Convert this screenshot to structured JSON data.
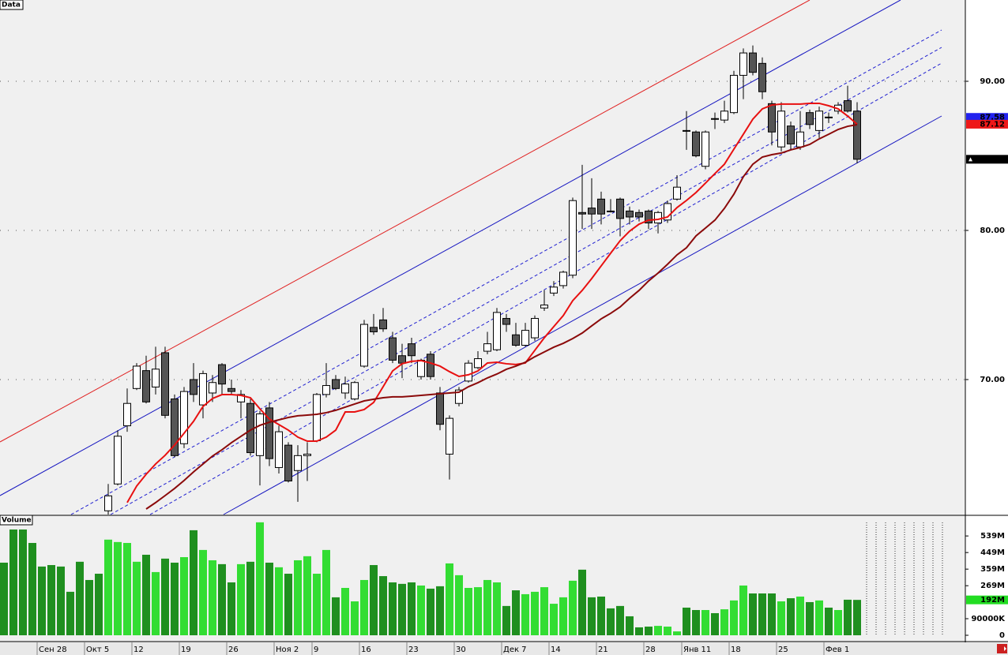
{
  "chart_data": {
    "type": "candlestick",
    "title": "Data",
    "categories": [
      null,
      null,
      null,
      null,
      "Сен 28",
      null,
      null,
      null,
      null,
      "Окт 5",
      null,
      null,
      null,
      null,
      "12",
      null,
      null,
      null,
      null,
      "19",
      null,
      null,
      null,
      null,
      "26",
      null,
      null,
      null,
      null,
      "Ноя 2",
      null,
      null,
      null,
      "9",
      null,
      null,
      null,
      null,
      "16",
      null,
      null,
      null,
      null,
      "23",
      null,
      null,
      null,
      null,
      "30",
      null,
      null,
      null,
      null,
      "Дек 7",
      null,
      null,
      null,
      null,
      "14",
      null,
      null,
      null,
      null,
      "21",
      null,
      null,
      null,
      null,
      "28",
      null,
      null,
      null,
      "Янв 11",
      null,
      null,
      null,
      null,
      "18",
      null,
      null,
      null,
      null,
      "25",
      null,
      null,
      null,
      null,
      "Фев 1",
      null,
      null,
      null
    ],
    "open": [
      null,
      null,
      null,
      null,
      null,
      null,
      null,
      null,
      null,
      null,
      null,
      61.2,
      63.0,
      66.9,
      69.4,
      70.6,
      69.5,
      71.8,
      68.7,
      65.7,
      70.0,
      68.3,
      69.1,
      71.0,
      69.4,
      68.5,
      68.4,
      64.9,
      68.1,
      64.1,
      65.6,
      63.9,
      64.9,
      65.9,
      69.0,
      70.0,
      69.1,
      68.7,
      70.9,
      73.5,
      74.0,
      72.8,
      71.6,
      72.4,
      70.2,
      71.7,
      69.1,
      65.0,
      68.4,
      69.9,
      70.8,
      71.9,
      72.0,
      74.1,
      73.0,
      72.3,
      72.8,
      74.8,
      75.8,
      76.3,
      77.0,
      81.2,
      81.5,
      82.1,
      81.3,
      82.1,
      81.3,
      81.2,
      81.3,
      80.5,
      80.7,
      82.1,
      86.7,
      86.6,
      84.3,
      87.5,
      87.4,
      87.9,
      90.4,
      91.9,
      91.2,
      88.5,
      85.6,
      87.0,
      85.6,
      87.9,
      86.7,
      87.6,
      88.0,
      88.7,
      88.0
    ],
    "high": [
      null,
      null,
      null,
      null,
      null,
      null,
      null,
      null,
      null,
      null,
      null,
      63.0,
      66.6,
      69.4,
      71.1,
      71.6,
      72.2,
      72.2,
      69.0,
      69.5,
      71.1,
      70.6,
      70.3,
      71.1,
      70.0,
      69.3,
      68.7,
      67.9,
      68.5,
      66.9,
      65.8,
      65.6,
      65.8,
      69.1,
      71.1,
      70.3,
      70.2,
      69.9,
      74.0,
      74.4,
      74.8,
      73.2,
      72.4,
      72.8,
      71.4,
      71.9,
      69.5,
      67.6,
      69.5,
      71.3,
      71.9,
      73.2,
      74.8,
      74.4,
      73.8,
      73.8,
      74.3,
      76.0,
      76.6,
      77.3,
      82.2,
      84.4,
      83.5,
      82.6,
      82.1,
      82.2,
      81.6,
      81.4,
      81.4,
      81.3,
      82.0,
      83.7,
      88.0,
      86.7,
      86.7,
      87.9,
      88.7,
      90.7,
      92.2,
      92.4,
      91.6,
      88.7,
      88.6,
      87.3,
      88.0,
      88.1,
      88.3,
      87.9,
      88.6,
      89.7,
      88.6
    ],
    "low": [
      null,
      null,
      null,
      null,
      null,
      null,
      null,
      null,
      null,
      null,
      null,
      60.9,
      62.9,
      66.5,
      69.3,
      68.4,
      69.0,
      67.4,
      64.8,
      65.4,
      68.5,
      67.4,
      68.5,
      69.0,
      69.0,
      67.4,
      64.9,
      62.9,
      64.2,
      63.7,
      63.1,
      61.8,
      63.2,
      65.8,
      68.8,
      69.3,
      68.7,
      68.6,
      70.8,
      73.0,
      73.2,
      71.1,
      70.1,
      71.1,
      70.0,
      70.0,
      66.6,
      63.3,
      68.2,
      69.8,
      70.7,
      71.7,
      71.9,
      73.2,
      72.2,
      72.2,
      72.6,
      74.6,
      75.6,
      76.1,
      76.8,
      80.1,
      80.1,
      80.4,
      81.2,
      79.6,
      80.4,
      80.6,
      80.1,
      79.8,
      80.5,
      82.0,
      85.4,
      84.9,
      84.1,
      86.8,
      87.2,
      87.8,
      88.8,
      90.4,
      88.8,
      85.7,
      85.3,
      85.4,
      85.4,
      86.8,
      86.2,
      87.2,
      87.8,
      87.9,
      84.5
    ],
    "close": [
      null,
      null,
      null,
      null,
      null,
      null,
      null,
      null,
      null,
      null,
      null,
      62.2,
      66.2,
      68.4,
      70.9,
      68.5,
      70.7,
      67.6,
      64.9,
      69.2,
      69.0,
      70.4,
      69.8,
      69.7,
      69.2,
      69.0,
      65.1,
      67.7,
      64.7,
      66.5,
      63.2,
      64.9,
      65.0,
      69.0,
      69.6,
      69.4,
      69.7,
      69.8,
      73.7,
      73.2,
      73.4,
      71.3,
      71.1,
      71.6,
      71.3,
      70.2,
      67.0,
      67.4,
      69.3,
      71.1,
      71.4,
      72.4,
      74.5,
      73.7,
      72.3,
      73.3,
      74.1,
      75.0,
      76.2,
      77.2,
      82.0,
      81.1,
      81.1,
      81.1,
      81.3,
      80.8,
      80.9,
      80.9,
      80.5,
      81.2,
      81.8,
      82.9,
      86.7,
      85.0,
      86.6,
      87.5,
      88.0,
      90.4,
      91.9,
      90.6,
      89.3,
      86.6,
      88.0,
      85.8,
      86.6,
      87.1,
      88.0,
      87.6,
      88.4,
      88.0,
      84.77
    ],
    "up_color": "#ffffff",
    "down_color": "#555555",
    "ylim": [
      60.95,
      95.45
    ],
    "yticks": [
      {
        "value": 70,
        "label": "70.00"
      },
      {
        "value": 80,
        "label": "80.00"
      },
      {
        "value": 90,
        "label": "90.00"
      }
    ],
    "grid": true,
    "series": [
      {
        "color": "#e81010",
        "values": [
          null,
          null,
          null,
          null,
          null,
          null,
          null,
          null,
          null,
          null,
          null,
          null,
          null,
          61.75,
          62.86,
          63.65,
          64.34,
          64.92,
          65.61,
          66.4,
          67.2,
          68.2,
          68.73,
          68.99,
          68.99,
          68.94,
          68.78,
          68.04,
          67.35,
          66.98,
          66.61,
          66.14,
          65.87,
          65.87,
          66.14,
          66.61,
          67.83,
          67.83,
          67.99,
          68.47,
          69.52,
          70.58,
          71.06,
          71.22,
          71.27,
          71.11,
          70.9,
          70.53,
          70.21,
          70.32,
          70.58,
          71.11,
          71.16,
          71.06,
          71.01,
          71.11,
          71.96,
          72.8,
          73.55,
          74.29,
          75.29,
          75.98,
          76.77,
          77.62,
          78.47,
          79.31,
          79.95,
          80.42,
          80.69,
          80.74,
          80.9,
          81.53,
          82.01,
          82.54,
          83.17,
          83.81,
          84.44,
          85.45,
          86.45,
          87.46,
          88.15,
          88.41,
          88.47,
          88.47,
          88.47,
          88.52,
          88.52,
          88.36,
          88.15,
          87.67,
          87.12
        ]
      },
      {
        "color": "#8b0a0a",
        "values": [
          null,
          null,
          null,
          null,
          null,
          null,
          null,
          null,
          null,
          null,
          null,
          null,
          null,
          null,
          null,
          61.32,
          61.75,
          62.22,
          62.7,
          63.23,
          63.81,
          64.34,
          64.87,
          65.29,
          65.77,
          66.19,
          66.61,
          66.93,
          67.14,
          67.3,
          67.46,
          67.57,
          67.62,
          67.67,
          67.78,
          67.94,
          68.15,
          68.36,
          68.57,
          68.68,
          68.78,
          68.84,
          68.84,
          68.89,
          68.94,
          68.99,
          69.05,
          69.1,
          69.15,
          69.52,
          69.79,
          70.11,
          70.37,
          70.69,
          70.9,
          71.16,
          71.53,
          71.85,
          72.17,
          72.43,
          72.75,
          73.12,
          73.6,
          74.07,
          74.44,
          74.87,
          75.45,
          75.98,
          76.61,
          77.14,
          77.73,
          78.36,
          78.84,
          79.63,
          80.16,
          80.69,
          81.48,
          82.43,
          83.6,
          84.44,
          84.92,
          85.08,
          85.19,
          85.4,
          85.56,
          85.77,
          86.14,
          86.45,
          86.77,
          86.98,
          87.09
        ]
      }
    ],
    "price_tags": [
      {
        "value": 87.58,
        "color": "#2222ee"
      },
      {
        "value": 87.12,
        "color": "#ee1818"
      },
      {
        "value": 84.77,
        "color": "#000000"
      }
    ],
    "volume": {
      "title": "Volume",
      "values": [
        394,
        574,
        574,
        501,
        373,
        381,
        373,
        236,
        399,
        300,
        334,
        519,
        506,
        501,
        399,
        437,
        343,
        416,
        394,
        424,
        570,
        463,
        407,
        386,
        287,
        386,
        399,
        613,
        394,
        369,
        334,
        407,
        429,
        334,
        463,
        206,
        257,
        184,
        300,
        381,
        321,
        287,
        279,
        287,
        270,
        253,
        266,
        390,
        326,
        257,
        261,
        300,
        287,
        159,
        244,
        223,
        236,
        261,
        171,
        206,
        296,
        356,
        206,
        210,
        146,
        159,
        103,
        43,
        47,
        51,
        47,
        21,
        150,
        137,
        137,
        120,
        141,
        189,
        270,
        227,
        227,
        227,
        184,
        201,
        210,
        180,
        189,
        150,
        137,
        193,
        192
      ],
      "up_color": "#33dd33",
      "down_color": "#1f8f1f",
      "ylim": [
        0,
        621
      ],
      "yticks": [
        {
          "value": 0,
          "label": "0"
        },
        {
          "value": 90,
          "label": "90000K"
        },
        {
          "value": 269,
          "label": "269M"
        },
        {
          "value": 359,
          "label": "359M"
        },
        {
          "value": 449,
          "label": "449M"
        },
        {
          "value": 539,
          "label": "539M"
        }
      ],
      "last_tag": {
        "value": 192,
        "label": "192M",
        "color": "#22dd22"
      }
    }
  }
}
